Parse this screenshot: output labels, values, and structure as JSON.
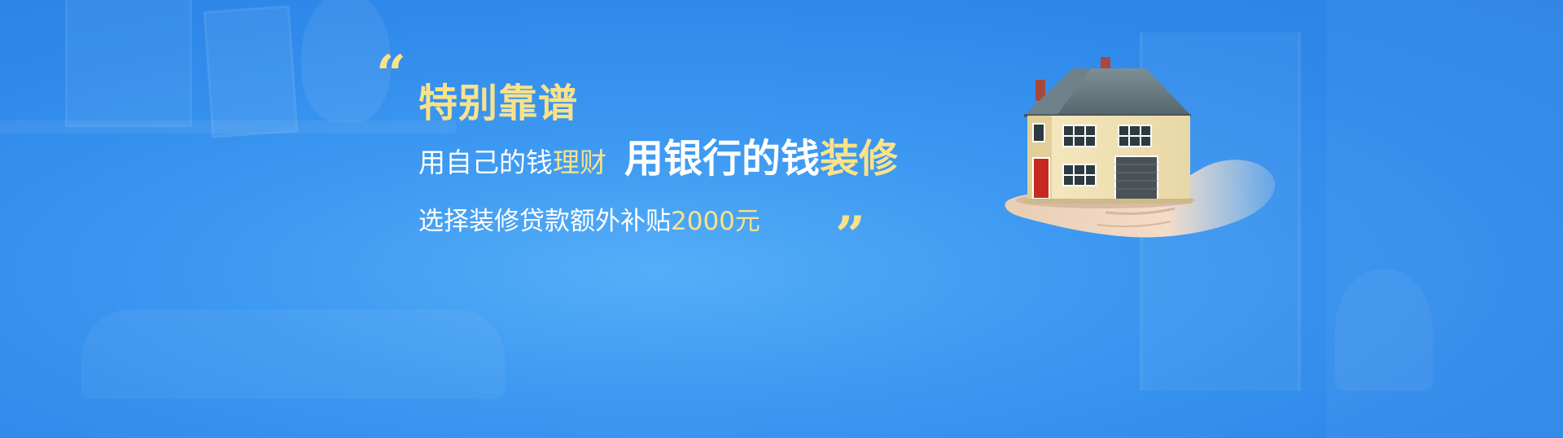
{
  "banner": {
    "headline": "特别靠谱",
    "line2_part1": "用自己的钱",
    "line2_part2": "理财",
    "line2_part3": "用银行的钱",
    "line2_part4": "装修",
    "line3_part1": "选择装修贷款额外补贴",
    "line3_part2": "2000元"
  },
  "quotes": {
    "open": "“",
    "close": "”"
  },
  "colors": {
    "background": "#3c98f1",
    "accent": "#f9e28a",
    "text": "#ffffff"
  },
  "icons": {
    "house": "house-in-hand-illustration"
  }
}
